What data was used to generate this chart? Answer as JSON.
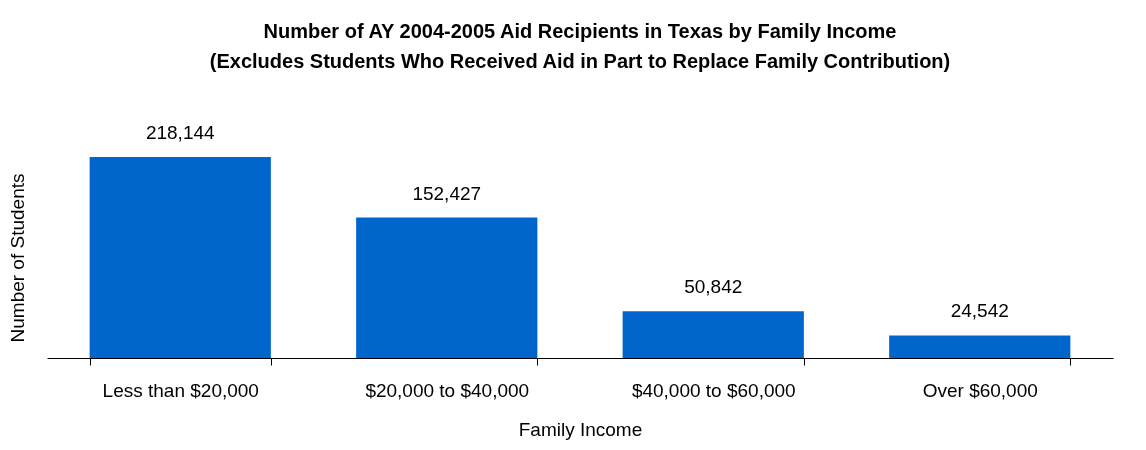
{
  "chart_data": {
    "type": "bar",
    "title": "Number of AY 2004-2005 Aid Recipients in Texas by Family Income\n(Excludes Students Who Received Aid in Part to Replace Family Contribution)",
    "xlabel": "Family Income",
    "ylabel": "Number of Students",
    "categories": [
      "Less than $20,000",
      "$20,000 to $40,000",
      "$40,000 to $60,000",
      "Over $60,000"
    ],
    "values": [
      218144,
      152427,
      50842,
      24542
    ],
    "value_labels": [
      "218,144",
      "152,427",
      "50,842",
      "24,542"
    ],
    "color": "#0066cc",
    "grid": false
  }
}
